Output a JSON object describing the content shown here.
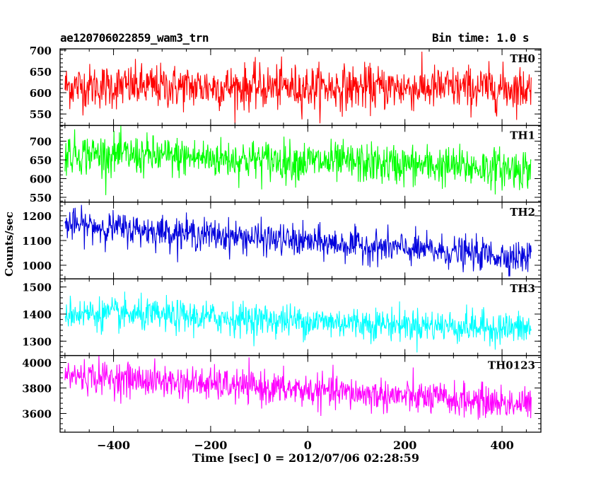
{
  "header": {
    "title": "ae120706022859_wam3_trn",
    "bin_time": "Bin time: 1.0 s"
  },
  "chart_data": {
    "type": "line",
    "xlabel": "Time [sec] 0 = 2012/07/06 02:28:59",
    "ylabel": "Counts/sec",
    "xlim": [
      -510,
      480
    ],
    "xticks": [
      -400,
      -200,
      0,
      200,
      400
    ],
    "x_range": [
      -500,
      460
    ],
    "panels": [
      {
        "name": "TH0",
        "color": "#ff0000",
        "ylim": [
          523,
          703
        ],
        "yticks": [
          550,
          600,
          650,
          700
        ],
        "trend_start": 615,
        "trend_end": 610,
        "noise_sd": 26,
        "bound_low": 528
      },
      {
        "name": "TH1",
        "color": "#00ff00",
        "ylim": [
          537,
          742
        ],
        "yticks": [
          550,
          600,
          650,
          700
        ],
        "trend_start": 668,
        "trend_end": 625,
        "noise_sd": 27,
        "bound_low": 540
      },
      {
        "name": "TH2",
        "color": "#0000dd",
        "ylim": [
          945,
          1255
        ],
        "yticks": [
          1000,
          1100,
          1200
        ],
        "trend_start": 1165,
        "trend_end": 1030,
        "noise_sd": 32,
        "bound_low": 955
      },
      {
        "name": "TH3",
        "color": "#00ffff",
        "ylim": [
          1247,
          1530
        ],
        "yticks": [
          1300,
          1400,
          1500
        ],
        "trend_start": 1405,
        "trend_end": 1345,
        "noise_sd": 30,
        "bound_low": 1255
      },
      {
        "name": "TH0123",
        "color": "#ff00ff",
        "ylim": [
          3453,
          4055
        ],
        "yticks": [
          3600,
          3800,
          4000
        ],
        "trend_start": 3900,
        "trend_end": 3670,
        "noise_sd": 65,
        "bound_low": 3460
      }
    ]
  }
}
